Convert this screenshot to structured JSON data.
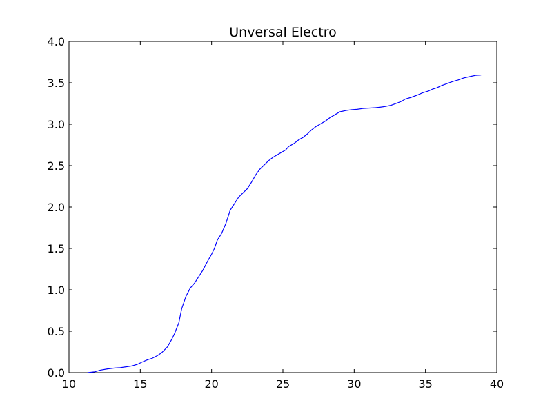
{
  "chart_data": {
    "type": "line",
    "title": "Unversal Electro",
    "xlabel": "",
    "ylabel": "",
    "xlim": [
      10,
      40
    ],
    "ylim": [
      0,
      4.0
    ],
    "grid": false,
    "x_ticks": [
      "10",
      "15",
      "20",
      "25",
      "30",
      "35",
      "40"
    ],
    "y_ticks": [
      "0.0",
      "0.5",
      "1.0",
      "1.5",
      "2.0",
      "2.5",
      "3.0",
      "3.5",
      "4.0"
    ],
    "colors": {
      "line": "#0000ff",
      "axes": "#000000",
      "background": "#ffffff"
    },
    "series": [
      {
        "points": [
          [
            11.3,
            0.0
          ],
          [
            11.8,
            0.01
          ],
          [
            12.2,
            0.03
          ],
          [
            12.7,
            0.045
          ],
          [
            13.2,
            0.055
          ],
          [
            13.6,
            0.06
          ],
          [
            14.0,
            0.07
          ],
          [
            14.4,
            0.08
          ],
          [
            14.8,
            0.1
          ],
          [
            15.1,
            0.125
          ],
          [
            15.5,
            0.155
          ],
          [
            15.8,
            0.17
          ],
          [
            16.2,
            0.205
          ],
          [
            16.5,
            0.24
          ],
          [
            16.9,
            0.31
          ],
          [
            17.2,
            0.4
          ],
          [
            17.4,
            0.47
          ],
          [
            17.7,
            0.6
          ],
          [
            17.9,
            0.77
          ],
          [
            18.2,
            0.92
          ],
          [
            18.5,
            1.02
          ],
          [
            18.8,
            1.08
          ],
          [
            19.1,
            1.16
          ],
          [
            19.4,
            1.24
          ],
          [
            19.7,
            1.34
          ],
          [
            20.0,
            1.43
          ],
          [
            20.2,
            1.5
          ],
          [
            20.4,
            1.6
          ],
          [
            20.7,
            1.68
          ],
          [
            21.0,
            1.8
          ],
          [
            21.3,
            1.96
          ],
          [
            21.6,
            2.04
          ],
          [
            21.9,
            2.12
          ],
          [
            22.2,
            2.17
          ],
          [
            22.5,
            2.22
          ],
          [
            22.8,
            2.3
          ],
          [
            23.1,
            2.39
          ],
          [
            23.4,
            2.46
          ],
          [
            23.7,
            2.51
          ],
          [
            24.0,
            2.56
          ],
          [
            24.3,
            2.6
          ],
          [
            24.6,
            2.63
          ],
          [
            24.9,
            2.66
          ],
          [
            25.2,
            2.69
          ],
          [
            25.4,
            2.73
          ],
          [
            25.8,
            2.77
          ],
          [
            26.1,
            2.81
          ],
          [
            26.4,
            2.84
          ],
          [
            26.7,
            2.88
          ],
          [
            27.0,
            2.93
          ],
          [
            27.3,
            2.97
          ],
          [
            27.6,
            3.0
          ],
          [
            28.0,
            3.04
          ],
          [
            28.3,
            3.08
          ],
          [
            28.6,
            3.11
          ],
          [
            29.0,
            3.15
          ],
          [
            29.4,
            3.165
          ],
          [
            29.8,
            3.175
          ],
          [
            30.2,
            3.18
          ],
          [
            30.6,
            3.19
          ],
          [
            31.0,
            3.195
          ],
          [
            31.5,
            3.2
          ],
          [
            31.8,
            3.205
          ],
          [
            32.2,
            3.215
          ],
          [
            32.6,
            3.23
          ],
          [
            33.0,
            3.255
          ],
          [
            33.3,
            3.275
          ],
          [
            33.6,
            3.305
          ],
          [
            34.0,
            3.325
          ],
          [
            34.4,
            3.35
          ],
          [
            34.8,
            3.38
          ],
          [
            35.2,
            3.4
          ],
          [
            35.5,
            3.425
          ],
          [
            35.8,
            3.44
          ],
          [
            36.1,
            3.465
          ],
          [
            36.5,
            3.49
          ],
          [
            36.9,
            3.515
          ],
          [
            37.3,
            3.535
          ],
          [
            37.7,
            3.56
          ],
          [
            38.1,
            3.575
          ],
          [
            38.5,
            3.59
          ],
          [
            38.9,
            3.595
          ]
        ]
      }
    ]
  }
}
